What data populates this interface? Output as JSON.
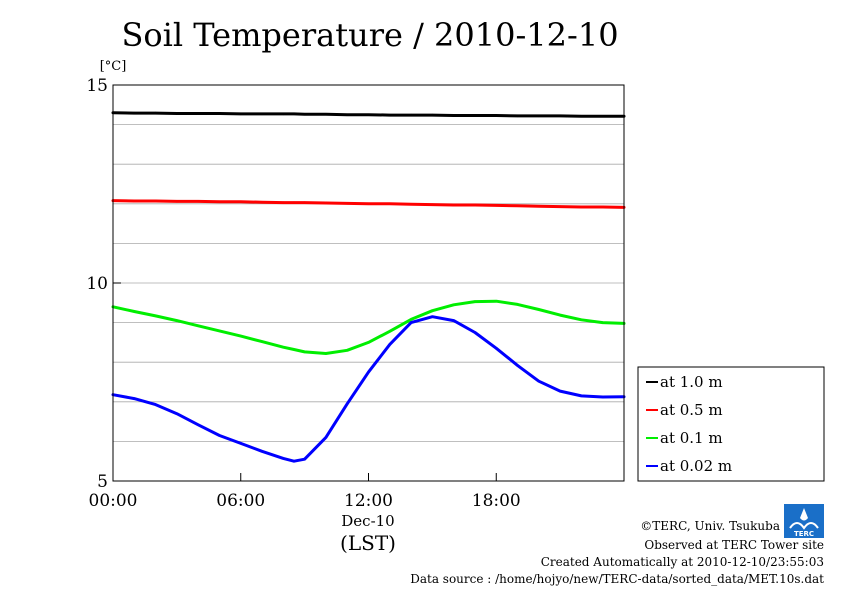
{
  "chart_data": {
    "type": "line",
    "title": "Soil Temperature / 2010-12-10",
    "ylabel_unit": "[°C]",
    "ylim": [
      5,
      15
    ],
    "yticks": [
      "5",
      "10",
      "15"
    ],
    "xlim_hours": [
      0,
      24
    ],
    "xticks": [
      "00:00",
      "06:00",
      "12:00",
      "18:00"
    ],
    "x_date_label": "Dec-10",
    "xlabel": "(LST)",
    "grid": true,
    "legend_position": "right",
    "x": [
      0,
      1,
      2,
      3,
      4,
      5,
      6,
      7,
      8,
      8.5,
      9,
      10,
      11,
      12,
      13,
      14,
      15,
      16,
      17,
      18,
      19,
      20,
      21,
      22,
      23,
      24
    ],
    "series": [
      {
        "name": "at 1.0 m",
        "color": "#000000",
        "values": [
          14.3,
          14.29,
          14.29,
          14.28,
          14.28,
          14.28,
          14.27,
          14.27,
          14.27,
          14.27,
          14.26,
          14.26,
          14.25,
          14.25,
          14.24,
          14.24,
          14.24,
          14.23,
          14.23,
          14.23,
          14.22,
          14.22,
          14.22,
          14.21,
          14.21,
          14.21
        ]
      },
      {
        "name": "at 0.5 m",
        "color": "#ff0000",
        "values": [
          12.08,
          12.07,
          12.07,
          12.06,
          12.06,
          12.05,
          12.05,
          12.04,
          12.03,
          12.03,
          12.03,
          12.02,
          12.01,
          12.0,
          12.0,
          11.99,
          11.98,
          11.97,
          11.97,
          11.96,
          11.95,
          11.94,
          11.93,
          11.92,
          11.92,
          11.91
        ]
      },
      {
        "name": "at 0.1 m",
        "color": "#00ee00",
        "values": [
          9.4,
          9.28,
          9.17,
          9.05,
          8.92,
          8.79,
          8.66,
          8.52,
          8.38,
          8.32,
          8.26,
          8.22,
          8.3,
          8.5,
          8.78,
          9.08,
          9.3,
          9.45,
          9.53,
          9.54,
          9.46,
          9.33,
          9.19,
          9.07,
          9.0,
          8.98
        ]
      },
      {
        "name": "at 0.02 m",
        "color": "#0000ff",
        "values": [
          7.18,
          7.08,
          6.93,
          6.7,
          6.42,
          6.15,
          5.95,
          5.75,
          5.57,
          5.5,
          5.55,
          6.1,
          6.95,
          7.75,
          8.45,
          9.0,
          9.15,
          9.05,
          8.75,
          8.35,
          7.92,
          7.52,
          7.27,
          7.15,
          7.12,
          7.13
        ]
      }
    ]
  },
  "footer": {
    "copyright": "©TERC, Univ. Tsukuba",
    "observed": "Observed at TERC Tower site",
    "created": "Created Automatically at 2010-12-10/23:55:03",
    "source": "Data source : /home/hojyo/new/TERC-data/sorted_data/MET.10s.dat",
    "logo_text": "TERC"
  }
}
